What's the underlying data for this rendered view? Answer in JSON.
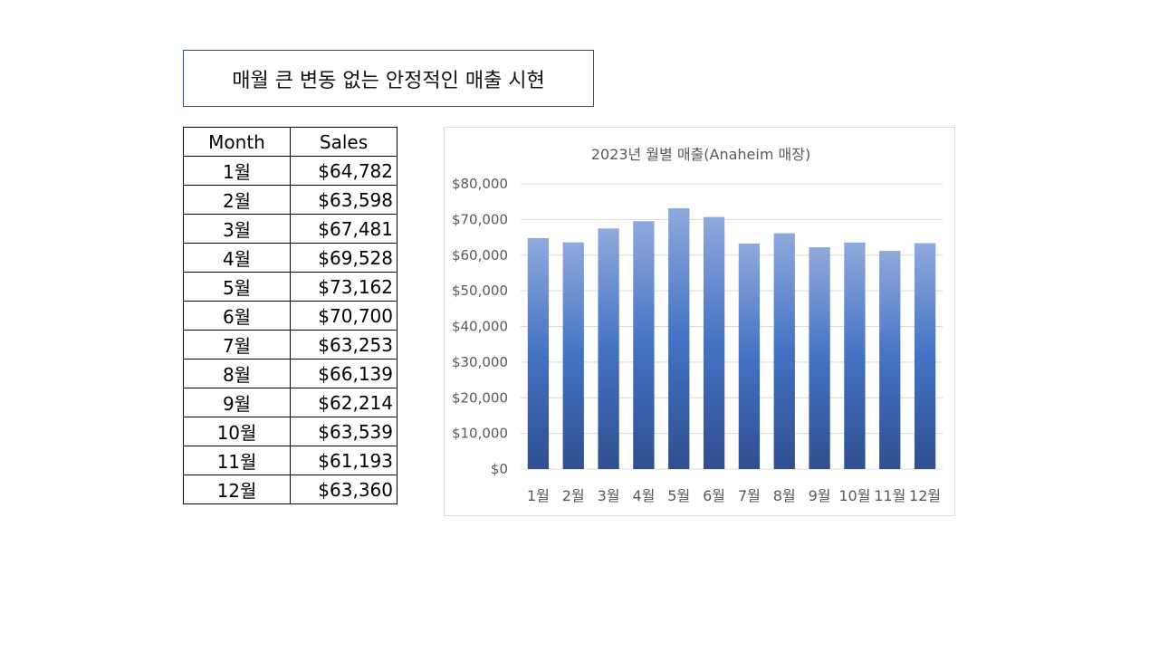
{
  "heading": "매월 큰 변동 없는 안정적인 매출 시현",
  "table": {
    "headers": [
      "Month",
      "Sales"
    ],
    "rows": [
      {
        "month": "1월",
        "sales": "$64,782"
      },
      {
        "month": "2월",
        "sales": "$63,598"
      },
      {
        "month": "3월",
        "sales": "$67,481"
      },
      {
        "month": "4월",
        "sales": "$69,528"
      },
      {
        "month": "5월",
        "sales": "$73,162"
      },
      {
        "month": "6월",
        "sales": "$70,700"
      },
      {
        "month": "7월",
        "sales": "$63,253"
      },
      {
        "month": "8월",
        "sales": "$66,139"
      },
      {
        "month": "9월",
        "sales": "$62,214"
      },
      {
        "month": "10월",
        "sales": "$63,539"
      },
      {
        "month": "11월",
        "sales": "$61,193"
      },
      {
        "month": "12월",
        "sales": "$63,360"
      }
    ]
  },
  "chart_data": {
    "type": "bar",
    "title": "2023년 월별 매출(Anaheim 매장)",
    "categories": [
      "1월",
      "2월",
      "3월",
      "4월",
      "5월",
      "6월",
      "7월",
      "8월",
      "9월",
      "10월",
      "11월",
      "12월"
    ],
    "values": [
      64782,
      63598,
      67481,
      69528,
      73162,
      70700,
      63253,
      66139,
      62214,
      63539,
      61193,
      63360
    ],
    "ylim": [
      0,
      80000
    ],
    "yticks": [
      0,
      10000,
      20000,
      30000,
      40000,
      50000,
      60000,
      70000,
      80000
    ],
    "ytick_labels": [
      "$0",
      "$10,000",
      "$20,000",
      "$30,000",
      "$40,000",
      "$50,000",
      "$60,000",
      "$70,000",
      "$80,000"
    ],
    "grid": true,
    "colors": {
      "bar_top": "#8faadc",
      "bar_mid": "#4472c4",
      "bar_bottom": "#2f4f8f",
      "grid": "#d9d9d9",
      "text": "#595959"
    }
  }
}
